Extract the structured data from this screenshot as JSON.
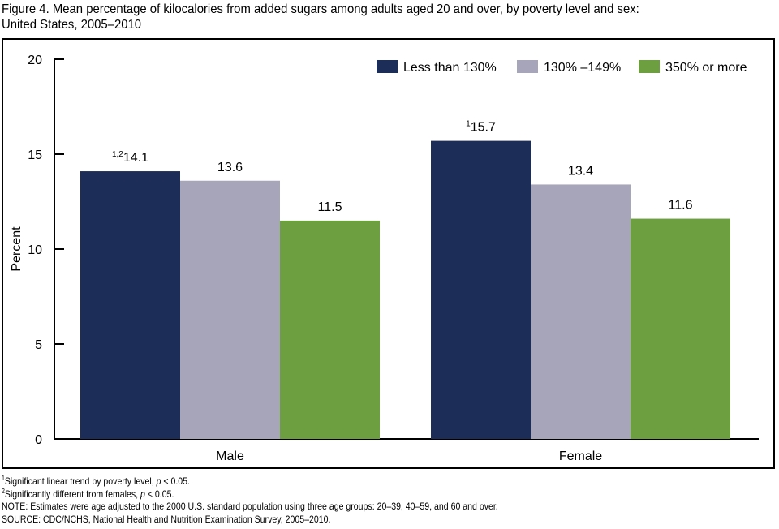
{
  "chart_data": {
    "type": "bar",
    "title": "Figure 4. Mean percentage of kilocalories from added sugars among adults aged 20 and over, by poverty level and sex:",
    "title_line2": "United States, 2005–2010",
    "xlabel": "",
    "ylabel": "Percent",
    "ylim": [
      0,
      20
    ],
    "yticks": [
      0,
      5,
      10,
      15,
      20
    ],
    "categories": [
      "Male",
      "Female"
    ],
    "legend_position": "top-right",
    "grid": false,
    "series": [
      {
        "name": "Less than 130%",
        "color": "#1c2d57",
        "values": [
          14.1,
          15.7
        ],
        "labels": [
          "14.1",
          "15.7"
        ],
        "label_superscripts": [
          "1,2",
          "1"
        ]
      },
      {
        "name": "130% –149%",
        "color": "#a6a5b9",
        "values": [
          13.6,
          13.4
        ],
        "labels": [
          "13.6",
          "13.4"
        ],
        "label_superscripts": [
          "",
          ""
        ]
      },
      {
        "name": "350% or more",
        "color": "#6d9e40",
        "values": [
          11.5,
          11.6
        ],
        "labels": [
          "11.5",
          "11.6"
        ],
        "label_superscripts": [
          "",
          ""
        ]
      }
    ]
  },
  "footnotes": [
    {
      "mark": "1",
      "text": "Significant linear trend by poverty level, ",
      "p": "p",
      "tail": " < 0.05."
    },
    {
      "mark": "2",
      "text": "Significantly different from females, ",
      "p": "p",
      "tail": " < 0.05."
    }
  ],
  "note": "NOTE: Estimates were age adjusted to the 2000 U.S. standard population using three age groups: 20–39, 40–59, and 60 and over.",
  "source": "SOURCE: CDC/NCHS, National Health and Nutrition Examination Survey, 2005–2010."
}
